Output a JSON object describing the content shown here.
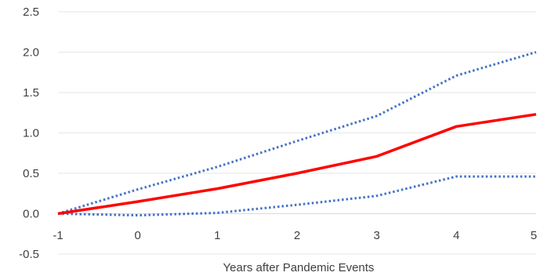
{
  "chart_data": {
    "type": "line",
    "title": "",
    "xlabel": "Years after Pandemic Events",
    "ylabel": "",
    "x": [
      -1,
      0,
      1,
      2,
      3,
      4,
      5
    ],
    "xlim": [
      -1,
      5
    ],
    "ylim": [
      -0.5,
      2.5
    ],
    "y_ticks": [
      "-0.5",
      "0.0",
      "0.5",
      "1.0",
      "1.5",
      "2.0",
      "2.5"
    ],
    "x_ticks": [
      "-1",
      "0",
      "1",
      "2",
      "3",
      "4",
      "5"
    ],
    "grid": "horizontal",
    "legend": "none",
    "series": [
      {
        "values": [
          0.0,
          0.15,
          0.31,
          0.5,
          0.71,
          1.08,
          1.23
        ],
        "color": "#ff0000",
        "style": "solid"
      },
      {
        "values": [
          0.0,
          0.3,
          0.58,
          0.9,
          1.21,
          1.71,
          2.0
        ],
        "color": "#4472c4",
        "style": "dotted"
      },
      {
        "values": [
          0.0,
          -0.02,
          0.01,
          0.11,
          0.22,
          0.46,
          0.46
        ],
        "color": "#4472c4",
        "style": "dotted"
      }
    ]
  }
}
